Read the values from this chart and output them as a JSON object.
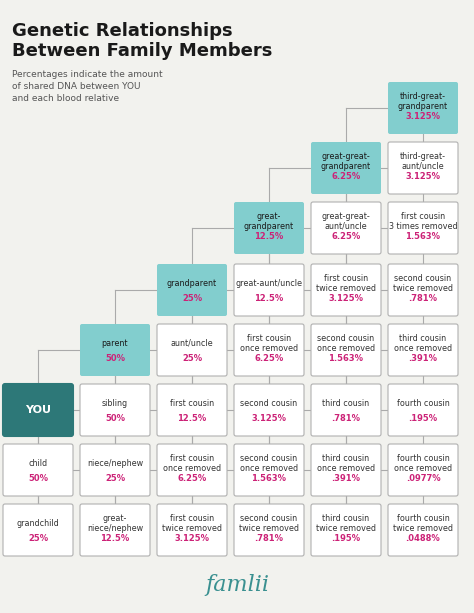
{
  "title": "Genetic Relationships\nBetween Family Members",
  "subtitle": "Percentages indicate the amount\nof shared DNA between YOU\nand each blood relative",
  "bg_color": "#f2f2ee",
  "title_color": "#1a1a1a",
  "subtitle_color": "#555555",
  "teal_box_color": "#82cece",
  "dark_teal_color": "#2d7a7a",
  "white_box_color": "#ffffff",
  "box_border_color": "#b0b0b0",
  "pct_color": "#cc2277",
  "label_color": "#333333",
  "you_color": "#2d7878",
  "line_color": "#aaaaaa",
  "boxes": [
    {
      "col": 6,
      "row": 0,
      "label": "third-great-\ngrandparent",
      "pct": "3.125%",
      "style": "teal"
    },
    {
      "col": 5,
      "row": 1,
      "label": "great-great-\ngrandparent",
      "pct": "6.25%",
      "style": "teal"
    },
    {
      "col": 6,
      "row": 1,
      "label": "third-great-\naunt/uncle",
      "pct": "3.125%",
      "style": "white"
    },
    {
      "col": 4,
      "row": 2,
      "label": "great-\ngrandparent",
      "pct": "12.5%",
      "style": "teal"
    },
    {
      "col": 5,
      "row": 2,
      "label": "great-great-\naunt/uncle",
      "pct": "6.25%",
      "style": "white"
    },
    {
      "col": 6,
      "row": 2,
      "label": "first cousin\n3 times removed",
      "pct": "1.563%",
      "style": "white"
    },
    {
      "col": 3,
      "row": 3,
      "label": "grandparent",
      "pct": "25%",
      "style": "teal"
    },
    {
      "col": 4,
      "row": 3,
      "label": "great-aunt/uncle",
      "pct": "12.5%",
      "style": "white"
    },
    {
      "col": 5,
      "row": 3,
      "label": "first cousin\ntwice removed",
      "pct": "3.125%",
      "style": "white"
    },
    {
      "col": 6,
      "row": 3,
      "label": "second cousin\ntwice removed",
      "pct": ".781%",
      "style": "white"
    },
    {
      "col": 2,
      "row": 4,
      "label": "parent",
      "pct": "50%",
      "style": "teal"
    },
    {
      "col": 3,
      "row": 4,
      "label": "aunt/uncle",
      "pct": "25%",
      "style": "white"
    },
    {
      "col": 4,
      "row": 4,
      "label": "first cousin\nonce removed",
      "pct": "6.25%",
      "style": "white"
    },
    {
      "col": 5,
      "row": 4,
      "label": "second cousin\nonce removed",
      "pct": "1.563%",
      "style": "white"
    },
    {
      "col": 6,
      "row": 4,
      "label": "third cousin\nonce removed",
      "pct": ".391%",
      "style": "white"
    },
    {
      "col": 1,
      "row": 5,
      "label": "YOU",
      "pct": "",
      "style": "you"
    },
    {
      "col": 2,
      "row": 5,
      "label": "sibling",
      "pct": "50%",
      "style": "white"
    },
    {
      "col": 3,
      "row": 5,
      "label": "first cousin",
      "pct": "12.5%",
      "style": "white"
    },
    {
      "col": 4,
      "row": 5,
      "label": "second cousin",
      "pct": "3.125%",
      "style": "white"
    },
    {
      "col": 5,
      "row": 5,
      "label": "third cousin",
      "pct": ".781%",
      "style": "white"
    },
    {
      "col": 6,
      "row": 5,
      "label": "fourth cousin",
      "pct": ".195%",
      "style": "white"
    },
    {
      "col": 1,
      "row": 6,
      "label": "child",
      "pct": "50%",
      "style": "white"
    },
    {
      "col": 2,
      "row": 6,
      "label": "niece/nephew",
      "pct": "25%",
      "style": "white"
    },
    {
      "col": 3,
      "row": 6,
      "label": "first cousin\nonce removed",
      "pct": "6.25%",
      "style": "white"
    },
    {
      "col": 4,
      "row": 6,
      "label": "second cousin\nonce removed",
      "pct": "1.563%",
      "style": "white"
    },
    {
      "col": 5,
      "row": 6,
      "label": "third cousin\nonce removed",
      "pct": ".391%",
      "style": "white"
    },
    {
      "col": 6,
      "row": 6,
      "label": "fourth cousin\nonce removed",
      "pct": ".0977%",
      "style": "white"
    },
    {
      "col": 1,
      "row": 7,
      "label": "grandchild",
      "pct": "25%",
      "style": "white"
    },
    {
      "col": 2,
      "row": 7,
      "label": "great-\nniece/nephew",
      "pct": "12.5%",
      "style": "white"
    },
    {
      "col": 3,
      "row": 7,
      "label": "first cousin\ntwice removed",
      "pct": "3.125%",
      "style": "white"
    },
    {
      "col": 4,
      "row": 7,
      "label": "second cousin\ntwice removed",
      "pct": ".781%",
      "style": "white"
    },
    {
      "col": 5,
      "row": 7,
      "label": "third cousin\ntwice removed",
      "pct": ".195%",
      "style": "white"
    },
    {
      "col": 6,
      "row": 7,
      "label": "fourth cousin\ntwice removed",
      "pct": ".0488%",
      "style": "white"
    }
  ],
  "famlii_text": "famlii",
  "famlii_color": "#3a9090"
}
